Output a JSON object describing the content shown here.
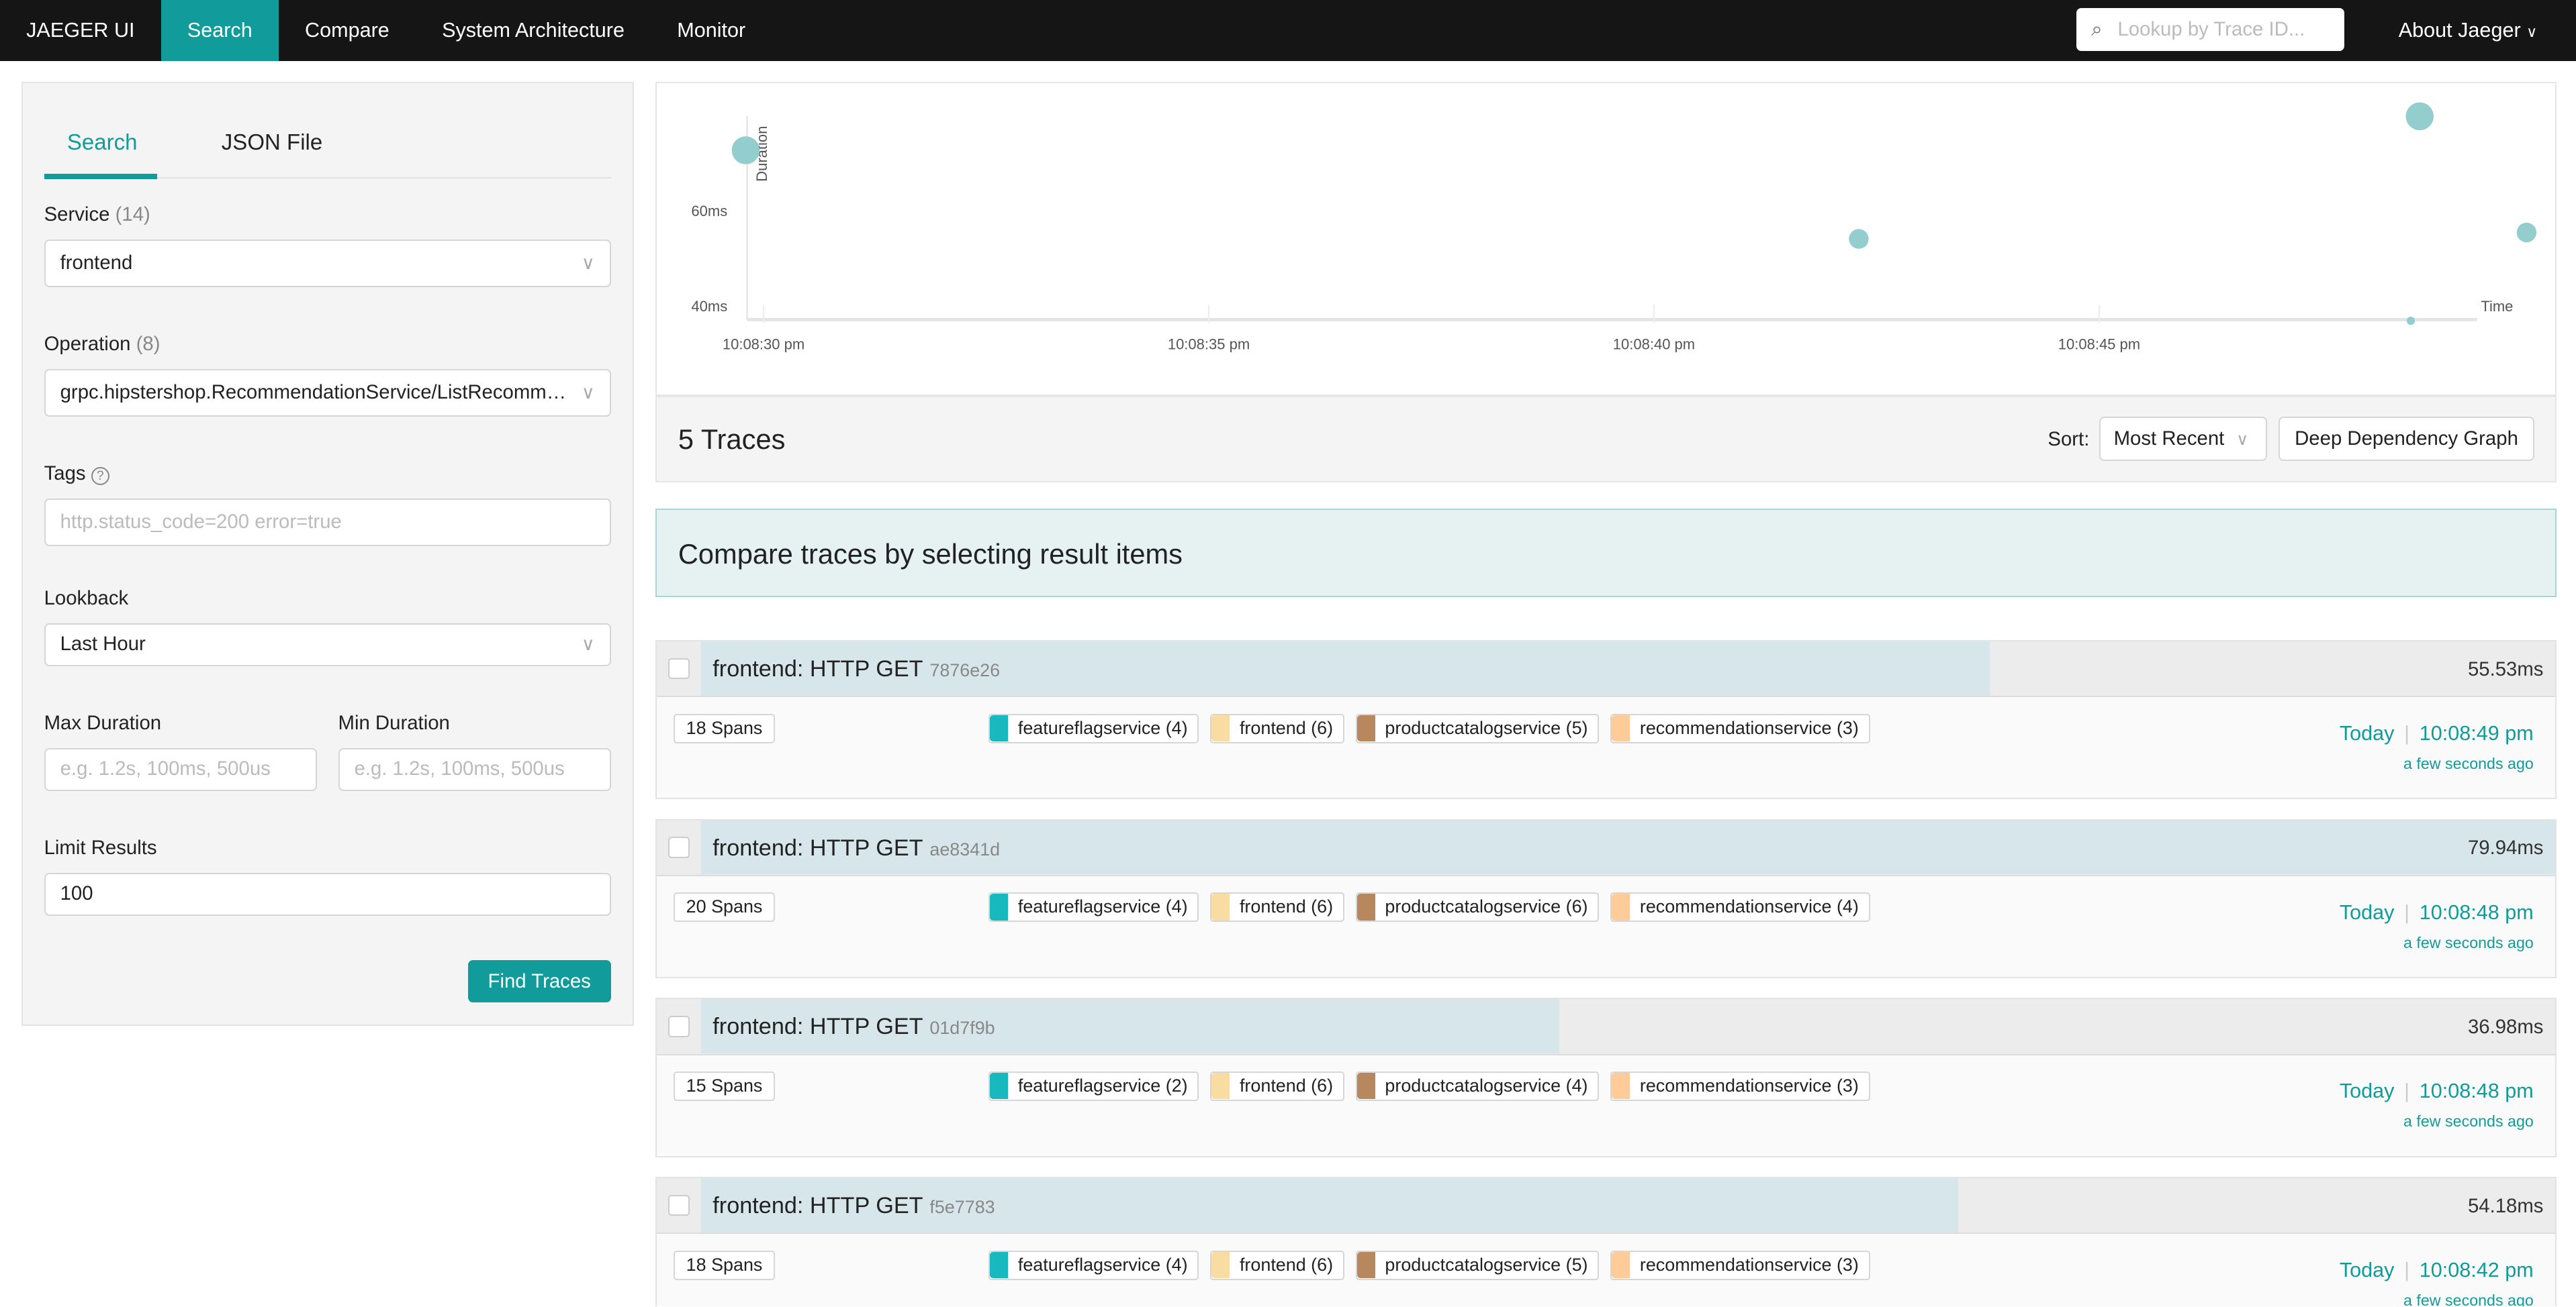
{
  "nav": {
    "brand": "JAEGER UI",
    "items": [
      "Search",
      "Compare",
      "System Architecture",
      "Monitor"
    ],
    "active": "Search",
    "lookup_placeholder": "Lookup by Trace ID...",
    "about": "About Jaeger"
  },
  "search": {
    "tabs": [
      "Search",
      "JSON File"
    ],
    "service_label": "Service",
    "service_count": "(14)",
    "service_value": "frontend",
    "operation_label": "Operation",
    "operation_count": "(8)",
    "operation_value": "grpc.hipstershop.RecommendationService/ListRecommend...",
    "tags_label": "Tags",
    "tags_placeholder": "http.status_code=200 error=true",
    "lookback_label": "Lookback",
    "lookback_value": "Last Hour",
    "max_duration_label": "Max Duration",
    "min_duration_label": "Min Duration",
    "duration_placeholder": "e.g. 1.2s, 100ms, 500us",
    "limit_label": "Limit Results",
    "limit_value": "100",
    "find_button": "Find Traces"
  },
  "chart_data": {
    "type": "scatter",
    "ylabel": "Duration",
    "xlabel": "Time",
    "y_ticks": [
      "40ms",
      "60ms"
    ],
    "x_ticks": [
      "10:08:30 pm",
      "10:08:35 pm",
      "10:08:40 pm",
      "10:08:45 pm"
    ],
    "points": [
      {
        "time": "10:08:29.8 pm",
        "duration_ms": 72.8
      },
      {
        "time": "10:08:42.3 pm",
        "duration_ms": 54.18
      },
      {
        "time": "10:08:48.6 pm",
        "duration_ms": 79.94
      },
      {
        "time": "10:08:48.5 pm",
        "duration_ms": 36.98
      },
      {
        "time": "10:08:49.8 pm",
        "duration_ms": 55.53
      }
    ],
    "color": "#8ecacb"
  },
  "results": {
    "count": "5 Traces",
    "sort_label": "Sort:",
    "sort_value": "Most Recent",
    "ddg_button": "Deep Dependency Graph",
    "compare_msg": "Compare traces by selecting result items"
  },
  "service_colors": {
    "featureflagservice": "#17b8be",
    "frontend": "#f8dca1",
    "productcatalogservice": "#b7885e",
    "recommendationservice": "#ffcb99"
  },
  "traces": [
    {
      "title": "frontend: HTTP GET",
      "id": "7876e26",
      "duration": "55.53ms",
      "duration_ms": 55.53,
      "spans": "18 Spans",
      "services": [
        [
          "featureflagservice",
          "featureflagservice (4)"
        ],
        [
          "frontend",
          "frontend (6)"
        ],
        [
          "productcatalogservice",
          "productcatalogservice (5)"
        ],
        [
          "recommendationservice",
          "recommendationservice (3)"
        ]
      ],
      "day": "Today",
      "time": "10:08:49 pm",
      "ago": "a few seconds ago"
    },
    {
      "title": "frontend: HTTP GET",
      "id": "ae8341d",
      "duration": "79.94ms",
      "duration_ms": 79.94,
      "spans": "20 Spans",
      "services": [
        [
          "featureflagservice",
          "featureflagservice (4)"
        ],
        [
          "frontend",
          "frontend (6)"
        ],
        [
          "productcatalogservice",
          "productcatalogservice (6)"
        ],
        [
          "recommendationservice",
          "recommendationservice (4)"
        ]
      ],
      "day": "Today",
      "time": "10:08:48 pm",
      "ago": "a few seconds ago"
    },
    {
      "title": "frontend: HTTP GET",
      "id": "01d7f9b",
      "duration": "36.98ms",
      "duration_ms": 36.98,
      "spans": "15 Spans",
      "services": [
        [
          "featureflagservice",
          "featureflagservice (2)"
        ],
        [
          "frontend",
          "frontend (6)"
        ],
        [
          "productcatalogservice",
          "productcatalogservice (4)"
        ],
        [
          "recommendationservice",
          "recommendationservice (3)"
        ]
      ],
      "day": "Today",
      "time": "10:08:48 pm",
      "ago": "a few seconds ago"
    },
    {
      "title": "frontend: HTTP GET",
      "id": "f5e7783",
      "duration": "54.18ms",
      "duration_ms": 54.18,
      "spans": "18 Spans",
      "services": [
        [
          "featureflagservice",
          "featureflagservice (4)"
        ],
        [
          "frontend",
          "frontend (6)"
        ],
        [
          "productcatalogservice",
          "productcatalogservice (5)"
        ],
        [
          "recommendationservice",
          "recommendationservice (3)"
        ]
      ],
      "day": "Today",
      "time": "10:08:42 pm",
      "ago": "a few seconds ago"
    }
  ]
}
